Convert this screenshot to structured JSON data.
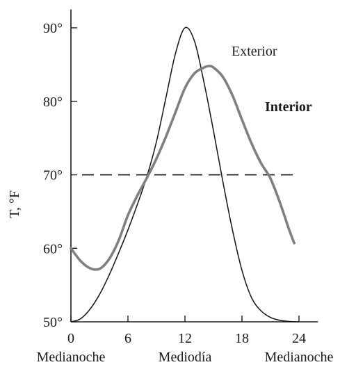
{
  "chart_data": {
    "type": "line",
    "ylabel": "T, °F",
    "xlabel": "",
    "x_ticks": [
      {
        "value": 0,
        "label": "0"
      },
      {
        "value": 6,
        "label": "6"
      },
      {
        "value": 12,
        "label": "12"
      },
      {
        "value": 18,
        "label": "18"
      },
      {
        "value": 24,
        "label": "24"
      }
    ],
    "x_categories": [
      {
        "value": 0,
        "label": "Medianoche"
      },
      {
        "value": 12,
        "label": "Mediodía"
      },
      {
        "value": 24,
        "label": "Medianoche"
      }
    ],
    "y_ticks": [
      {
        "value": 50,
        "label": "50°"
      },
      {
        "value": 60,
        "label": "60°"
      },
      {
        "value": 70,
        "label": "70°"
      },
      {
        "value": 80,
        "label": "80°"
      },
      {
        "value": 90,
        "label": "90°"
      }
    ],
    "xlim": [
      0,
      26
    ],
    "ylim": [
      50,
      92.5
    ],
    "reference_line": {
      "y": 70,
      "style": "dashed",
      "x_range": [
        0,
        24
      ]
    },
    "series": [
      {
        "name": "Exterior",
        "color": "#111111",
        "points": [
          [
            0,
            50
          ],
          [
            1,
            50.4
          ],
          [
            2,
            51.7
          ],
          [
            3,
            53.7
          ],
          [
            4,
            56.3
          ],
          [
            5,
            59.3
          ],
          [
            6,
            62.5
          ],
          [
            7,
            66.0
          ],
          [
            8,
            69.8
          ],
          [
            9,
            74.5
          ],
          [
            10,
            80.5
          ],
          [
            11,
            86.5
          ],
          [
            12,
            90.0
          ],
          [
            13,
            88.2
          ],
          [
            14,
            82.6
          ],
          [
            15,
            76.0
          ],
          [
            16,
            69.0
          ],
          [
            17,
            62.5
          ],
          [
            18,
            57.0
          ],
          [
            19,
            53.3
          ],
          [
            20,
            51.5
          ],
          [
            21,
            50.6
          ],
          [
            22,
            50.2
          ],
          [
            23,
            50.05
          ],
          [
            24,
            50
          ]
        ]
      },
      {
        "name": "Interior",
        "color": "#7f7f7f",
        "points": [
          [
            0,
            60
          ],
          [
            1,
            58.3
          ],
          [
            2,
            57.3
          ],
          [
            3,
            57.2
          ],
          [
            4,
            58.5
          ],
          [
            5,
            61.0
          ],
          [
            6,
            64.5
          ],
          [
            7,
            67.2
          ],
          [
            8,
            69.6
          ],
          [
            9,
            72.2
          ],
          [
            10,
            75.2
          ],
          [
            11,
            78.5
          ],
          [
            12,
            81.8
          ],
          [
            13,
            83.8
          ],
          [
            14,
            84.6
          ],
          [
            14.5,
            84.8
          ],
          [
            15,
            84.6
          ],
          [
            16,
            83.3
          ],
          [
            17,
            80.8
          ],
          [
            18,
            77.5
          ],
          [
            19,
            74.3
          ],
          [
            20,
            71.6
          ],
          [
            21,
            69.5
          ],
          [
            22,
            66.2
          ],
          [
            23,
            62.4
          ],
          [
            23.5,
            60.7
          ]
        ]
      }
    ]
  }
}
